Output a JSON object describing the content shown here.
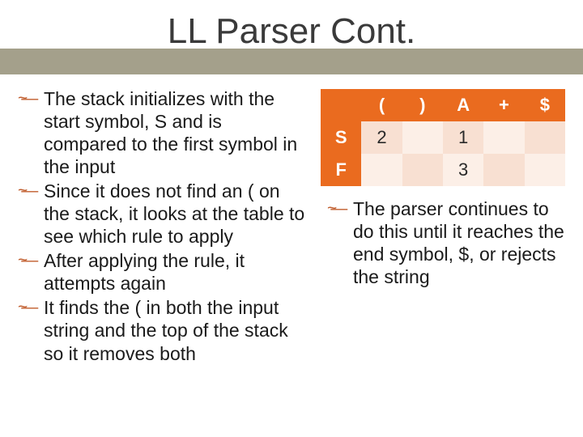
{
  "title": "LL Parser Cont.",
  "colors": {
    "title_band": "#a4a08b",
    "title_text": "#3a3a3a",
    "bullet_marker": "#c05c2c",
    "table_header_bg": "#ea6b1f",
    "table_header_fg": "#ffffff",
    "cell_shade_a": "#f8e0d2",
    "cell_shade_b": "#fcefe7",
    "body_text": "#1a1a1a",
    "background": "#ffffff"
  },
  "typography": {
    "title_fontsize": 44,
    "body_fontsize": 23,
    "table_fontsize": 22
  },
  "left_bullets": [
    "The stack initializes with the start symbol, S and is compared to the first symbol in the input",
    "Since it does not find an ( on the stack, it looks at the table to see which rule to apply",
    "After applying the rule, it attempts again",
    "It finds the ( in both the input string and the top of the stack so it removes both"
  ],
  "table": {
    "type": "table",
    "columns": [
      "(",
      ")",
      "A",
      "+",
      "$"
    ],
    "row_headers": [
      "S",
      "F"
    ],
    "rows": [
      [
        "2",
        "",
        "1",
        "",
        ""
      ],
      [
        "",
        "",
        "3",
        "",
        ""
      ]
    ],
    "cell_shading": [
      [
        "a",
        "b",
        "a",
        "b",
        "a"
      ],
      [
        "b",
        "a",
        "b",
        "a",
        "b"
      ]
    ]
  },
  "right_bullets": [
    "The parser continues to do this until it reaches the end symbol, $, or rejects the string"
  ]
}
